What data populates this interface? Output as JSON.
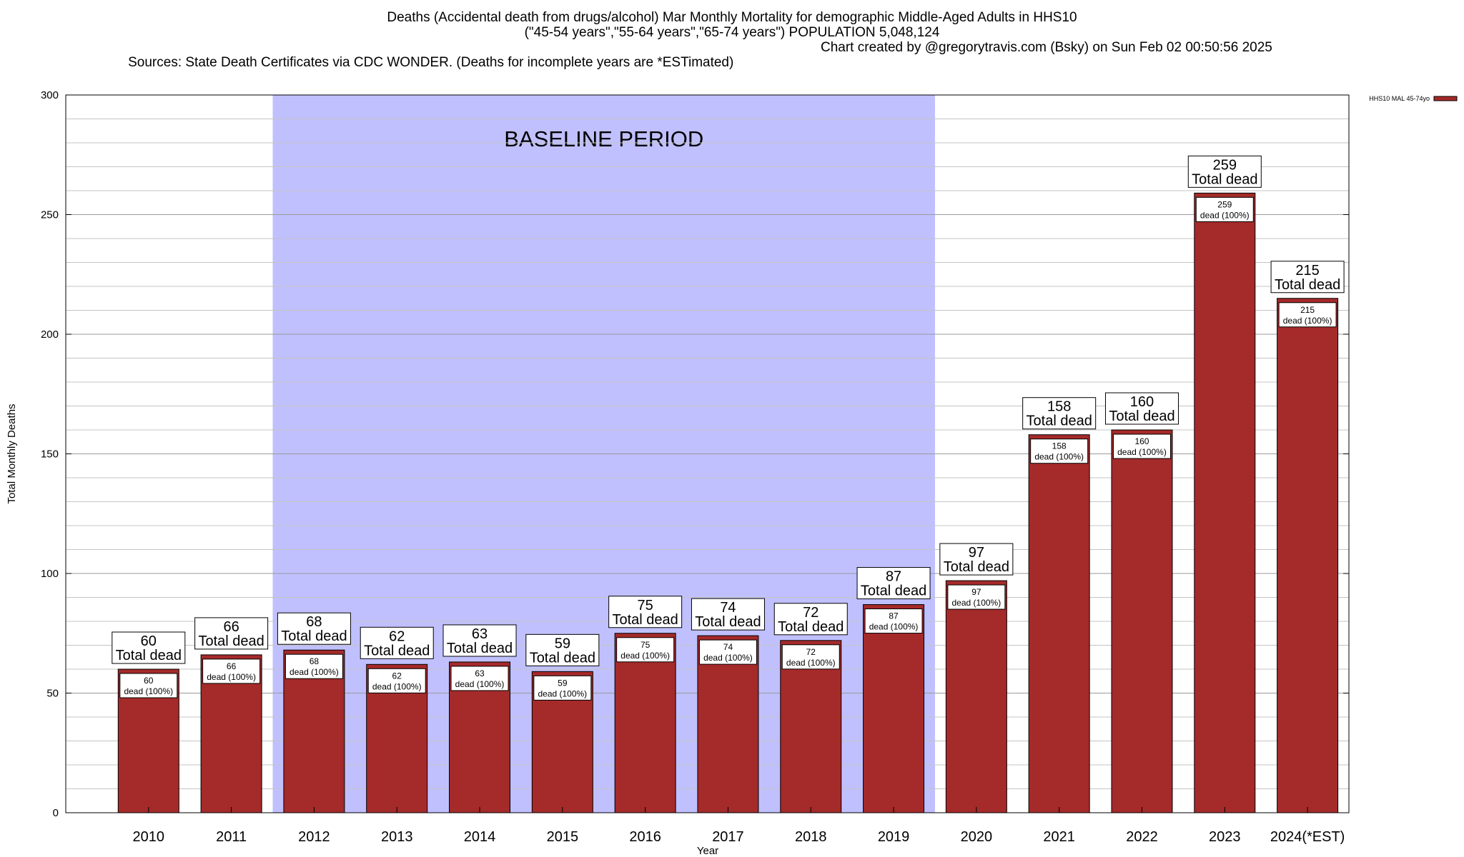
{
  "header": {
    "title": "Deaths (Accidental death from drugs/alcohol) Mar Monthly Mortality for demographic Middle-Aged Adults in HHS10",
    "subtitle": "(\"45-54 years\",\"55-64 years\",\"65-74 years\") POPULATION 5,048,124",
    "sources": "Sources: State Death Certificates via CDC WONDER. (Deaths for incomplete years are *ESTimated)",
    "credit": "Chart created by @gregorytravis.com (Bsky) on Sun Feb 02 00:50:56 2025"
  },
  "chart_data": {
    "type": "bar",
    "categories": [
      "2010",
      "2011",
      "2012",
      "2013",
      "2014",
      "2015",
      "2016",
      "2017",
      "2018",
      "2019",
      "2020",
      "2021",
      "2022",
      "2023",
      "2024(*EST)"
    ],
    "series": [
      {
        "name": "HHS10 MAL 45-74yo",
        "values": [
          60,
          66,
          68,
          62,
          63,
          59,
          75,
          74,
          72,
          87,
          97,
          158,
          160,
          259,
          215
        ],
        "color": "#a52a2a"
      }
    ],
    "xlabel": "Year",
    "ylabel": "Total Monthly Deaths",
    "ylim": [
      0,
      300
    ],
    "yticks": [
      0,
      50,
      100,
      150,
      200,
      250,
      300
    ],
    "minor_grid_step": 10,
    "grid": true,
    "legend_position": "top-right",
    "top_label_suffix": "Total dead",
    "inner_label_suffix": "dead (100%)",
    "baseline_period": {
      "label": "BASELINE PERIOD",
      "start": "2012",
      "end": "2019",
      "color": "#c0c0ff"
    }
  }
}
